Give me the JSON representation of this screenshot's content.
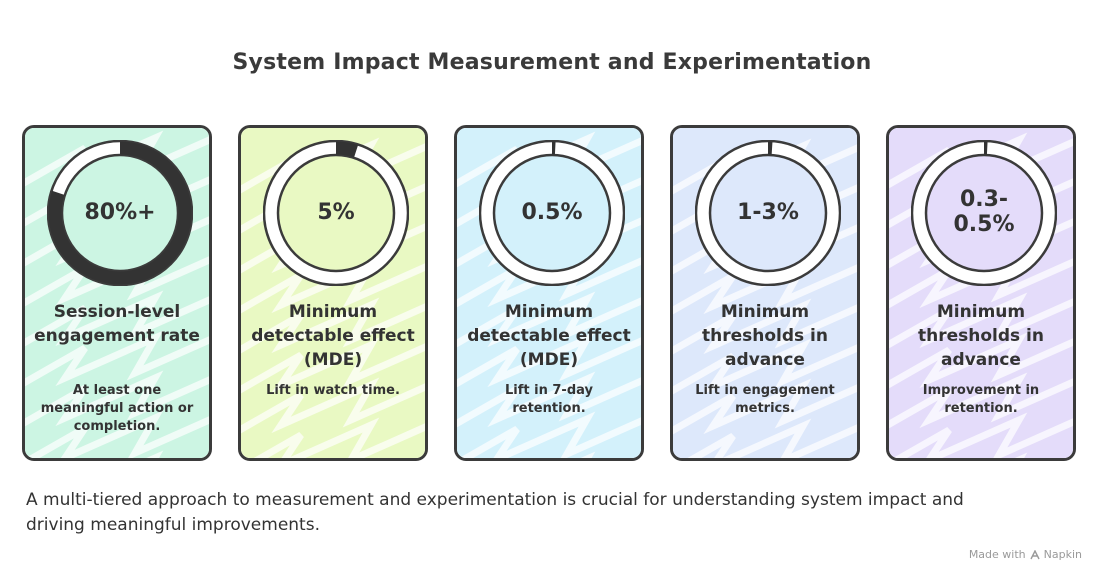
{
  "title": "System Impact Measurement and Experimentation",
  "cards": [
    {
      "metric": "80%+",
      "heading": "Session-level engagement rate",
      "description": "At least one meaningful action or completion.",
      "fill_fraction": 0.8,
      "color": "#ccf5e3"
    },
    {
      "metric": "5%",
      "heading": "Minimum detectable effect (MDE)",
      "description": "Lift in watch time.",
      "fill_fraction": 0.05,
      "color": "#e9f9c3"
    },
    {
      "metric": "0.5%",
      "heading": "Minimum detectable effect (MDE)",
      "description": "Lift in 7-day retention.",
      "fill_fraction": 0.005,
      "color": "#d3f1fb"
    },
    {
      "metric": "1-3%",
      "heading": "Minimum thresholds in advance",
      "description": "Lift in engagement metrics.",
      "fill_fraction": 0.01,
      "color": "#dde8fb"
    },
    {
      "metric": "0.3-\n0.5%",
      "heading": "Minimum thresholds in advance",
      "description": "Improvement in retention.",
      "fill_fraction": 0.005,
      "color": "#e4dcfa"
    }
  ],
  "footer": "A multi-tiered approach to measurement and experimentation is crucial for understanding system impact and driving meaningful improvements.",
  "brand": {
    "made_with": "Made with",
    "name": "Napkin",
    "icon": "napkin-logo-icon"
  }
}
